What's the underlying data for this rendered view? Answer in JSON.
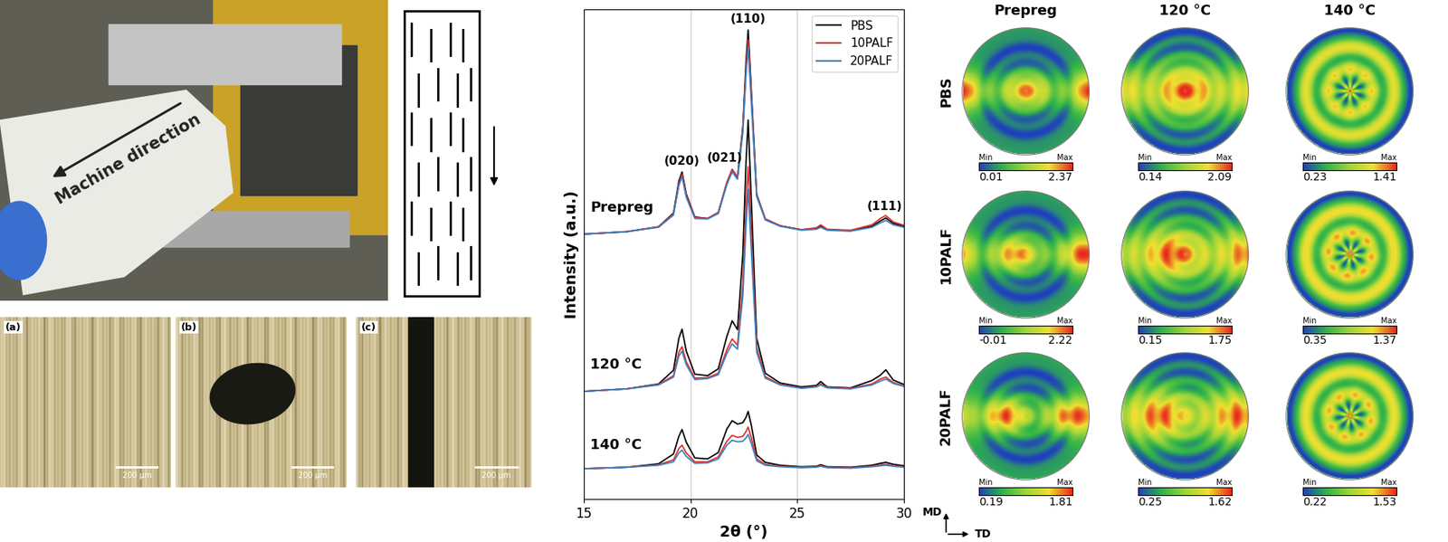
{
  "photo": {
    "arrow_label": "Machine direction"
  },
  "micrographs": [
    {
      "label": "(a)",
      "scale_bar": "200 μm"
    },
    {
      "label": "(b)",
      "scale_bar": "200 μm"
    },
    {
      "label": "(c)",
      "scale_bar": "200 μm"
    }
  ],
  "chart_data": {
    "type": "line",
    "xlabel": "2θ (°)",
    "ylabel": "Intensity (a.u.)",
    "xlim": [
      15,
      30
    ],
    "xticks": [
      15,
      20,
      25,
      30
    ],
    "ylim": [
      0,
      100
    ],
    "tick_labels": "x",
    "grid": true,
    "legend": "upper right",
    "x": [
      15,
      17,
      18.5,
      19.2,
      19.45,
      19.6,
      19.8,
      20.2,
      20.8,
      21.3,
      21.7,
      21.95,
      22.2,
      22.45,
      22.6,
      22.7,
      22.85,
      23.1,
      23.5,
      24.2,
      25.2,
      25.9,
      26.1,
      26.4,
      27.5,
      28.5,
      28.9,
      29.15,
      29.5,
      30
    ],
    "groups": [
      {
        "label": "Prepreg",
        "label_x": 15.3,
        "label_y": 58.0,
        "series": [
          {
            "name": "PBS",
            "color": "#000000",
            "values": [
              54.1,
              54.6,
              55.6,
              58.4,
              64.9,
              66.8,
              62.3,
              57.6,
              57.3,
              58.5,
              64.6,
              67.3,
              65.7,
              76.0,
              89.5,
              95.8,
              83.2,
              62.2,
              57.2,
              55.8,
              55.0,
              55.3,
              55.8,
              55.0,
              54.8,
              55.7,
              56.8,
              57.4,
              56.3,
              55.7
            ]
          },
          {
            "name": "10PALF",
            "color": "#e0302a",
            "values": [
              54.1,
              54.6,
              55.6,
              58.2,
              64.4,
              66.3,
              62.0,
              57.5,
              57.3,
              58.5,
              64.6,
              67.3,
              65.7,
              75.5,
              88.0,
              93.8,
              82.0,
              62.0,
              57.2,
              55.8,
              55.0,
              55.4,
              56.0,
              55.1,
              54.9,
              56.0,
              57.3,
              57.9,
              56.6,
              55.9
            ]
          },
          {
            "name": "20PALF",
            "color": "#3c7fc0",
            "values": [
              54.1,
              54.6,
              55.5,
              58.0,
              64.0,
              65.8,
              61.6,
              57.3,
              57.2,
              58.3,
              64.2,
              66.8,
              65.3,
              74.8,
              86.8,
              92.3,
              80.8,
              61.8,
              57.0,
              55.7,
              54.9,
              55.1,
              55.5,
              54.9,
              54.7,
              55.5,
              56.4,
              56.9,
              56.0,
              55.5
            ]
          }
        ]
      },
      {
        "label": "120 °C",
        "label_x": 15.3,
        "label_y": 26.0,
        "series": [
          {
            "name": "PBS",
            "color": "#000000",
            "values": [
              22.0,
              22.5,
              23.5,
              26.3,
              32.8,
              34.7,
              30.2,
              25.5,
              25.2,
              26.6,
              33.2,
              36.4,
              34.6,
              50.0,
              69.0,
              77.4,
              60.7,
              32.8,
              25.7,
              23.7,
              22.9,
              23.2,
              24.0,
              22.9,
              22.7,
              24.2,
              25.3,
              26.4,
              24.3,
              23.4
            ]
          },
          {
            "name": "10PALF",
            "color": "#e0302a",
            "values": [
              22.0,
              22.5,
              23.4,
              25.2,
              30.0,
              31.1,
              28.0,
              24.7,
              24.8,
              25.7,
              30.5,
              32.7,
              31.4,
              44.0,
              60.0,
              67.9,
              54.0,
              31.0,
              25.0,
              23.4,
              22.7,
              23.0,
              23.5,
              22.8,
              22.6,
              23.5,
              24.5,
              24.9,
              23.8,
              23.1
            ]
          },
          {
            "name": "20PALF",
            "color": "#3c7fc0",
            "values": [
              22.0,
              22.5,
              23.3,
              24.9,
              29.2,
              30.2,
              27.4,
              24.4,
              24.6,
              25.4,
              29.7,
              31.7,
              30.6,
              41.5,
              56.0,
              63.2,
              50.6,
              30.0,
              24.7,
              23.3,
              22.6,
              22.9,
              23.3,
              22.7,
              22.5,
              23.3,
              24.1,
              24.5,
              23.6,
              23.0
            ]
          }
        ]
      },
      {
        "label": "140 °C",
        "label_x": 15.3,
        "label_y": 9.5,
        "series": [
          {
            "name": "PBS",
            "color": "#000000",
            "values": [
              6.2,
              6.5,
              7.2,
              9.2,
              12.8,
              14.2,
              11.6,
              8.4,
              8.2,
              9.5,
              14.3,
              16.0,
              15.3,
              15.6,
              16.7,
              17.9,
              15.0,
              9.0,
              7.5,
              6.9,
              6.6,
              6.7,
              7.0,
              6.6,
              6.5,
              6.9,
              7.3,
              7.5,
              7.1,
              6.8
            ]
          },
          {
            "name": "10PALF",
            "color": "#e0302a",
            "values": [
              6.2,
              6.5,
              7.0,
              8.0,
              10.3,
              11.0,
              9.4,
              7.6,
              7.6,
              8.6,
              11.8,
              13.0,
              12.6,
              12.8,
              13.8,
              14.7,
              12.5,
              8.2,
              7.1,
              6.7,
              6.5,
              6.6,
              6.8,
              6.5,
              6.4,
              6.7,
              7.0,
              7.1,
              6.8,
              6.6
            ]
          },
          {
            "name": "20PALF",
            "color": "#3c7fc0",
            "values": [
              6.2,
              6.5,
              6.9,
              7.6,
              9.4,
              10.0,
              8.7,
              7.3,
              7.4,
              8.2,
              11.0,
              12.0,
              11.7,
              11.8,
              12.5,
              13.2,
              11.3,
              7.8,
              6.9,
              6.6,
              6.4,
              6.5,
              6.7,
              6.4,
              6.3,
              6.6,
              6.8,
              6.9,
              6.7,
              6.5
            ]
          }
        ]
      }
    ],
    "annotations": [
      {
        "text": "(020)",
        "x": 19.6,
        "y": 67.8
      },
      {
        "text": "(021)",
        "x": 21.6,
        "y": 68.5
      },
      {
        "text": "(110)",
        "x": 22.7,
        "y": 96.8
      },
      {
        "text": "(111)",
        "x": 29.1,
        "y": 58.5
      }
    ]
  },
  "pole_figures": {
    "columns": [
      "Prepreg",
      "120 °C",
      "140 °C"
    ],
    "rows": [
      "PBS",
      "10PALF",
      "20PALF"
    ],
    "min_label": "Min",
    "max_label": "Max",
    "ranges": [
      [
        [
          0.01,
          2.37
        ],
        [
          0.14,
          2.09
        ],
        [
          0.23,
          1.41
        ]
      ],
      [
        [
          -0.01,
          2.22
        ],
        [
          0.15,
          1.75
        ],
        [
          0.35,
          1.37
        ]
      ],
      [
        [
          0.19,
          1.81
        ],
        [
          0.25,
          1.62
        ],
        [
          0.22,
          1.53
        ]
      ]
    ],
    "axes": {
      "vertical": "MD",
      "horizontal": "TD"
    }
  }
}
